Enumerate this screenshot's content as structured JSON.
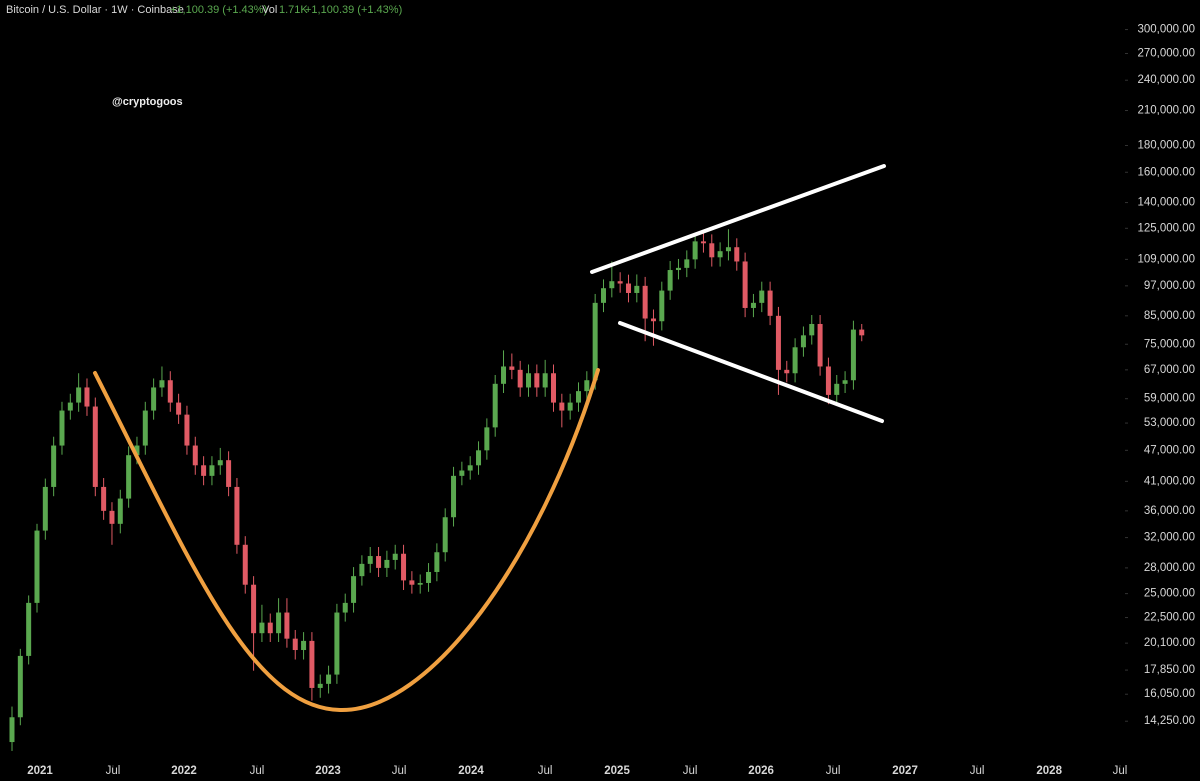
{
  "chart_data": {
    "type": "candlestick",
    "title": "Bitcoin / U.S. Dollar · 1W · Coinbase",
    "change": "+1,100.39 (+1.43%)",
    "vol_label": "Vol",
    "volume": "1.71K",
    "vol_change": "+1,100.39 (+1.43%)",
    "watermark": "@cryptogoos",
    "log_scale": true,
    "up_color": "#5aa84f",
    "down_color": "#e05a64",
    "ylim": [
      11750,
      327000
    ],
    "yticks": [
      {
        "value": 300000,
        "label": "300,000.00"
      },
      {
        "value": 270000,
        "label": "270,000.00"
      },
      {
        "value": 240000,
        "label": "240,000.00"
      },
      {
        "value": 210000,
        "label": "210,000.00"
      },
      {
        "value": 180000,
        "label": "180,000.00"
      },
      {
        "value": 160000,
        "label": "160,000.00"
      },
      {
        "value": 140000,
        "label": "140,000.00"
      },
      {
        "value": 125000,
        "label": "125,000.00"
      },
      {
        "value": 109000,
        "label": "109,000.00"
      },
      {
        "value": 97000,
        "label": "97,000.00"
      },
      {
        "value": 85000,
        "label": "85,000.00"
      },
      {
        "value": 75000,
        "label": "75,000.00"
      },
      {
        "value": 67000,
        "label": "67,000.00"
      },
      {
        "value": 59000,
        "label": "59,000.00"
      },
      {
        "value": 53000,
        "label": "53,000.00"
      },
      {
        "value": 47000,
        "label": "47,000.00"
      },
      {
        "value": 41000,
        "label": "41,000.00"
      },
      {
        "value": 36000,
        "label": "36,000.00"
      },
      {
        "value": 32000,
        "label": "32,000.00"
      },
      {
        "value": 28000,
        "label": "28,000.00"
      },
      {
        "value": 25000,
        "label": "25,000.00"
      },
      {
        "value": 22500,
        "label": "22,500.00"
      },
      {
        "value": 20100,
        "label": "20,100.00"
      },
      {
        "value": 17850,
        "label": "17,850.00"
      },
      {
        "value": 16050,
        "label": "16,050.00"
      },
      {
        "value": 14250,
        "label": "14,250.00"
      }
    ],
    "xlim": [
      -1.44,
      133.6
    ],
    "xticks": [
      {
        "value": 3.36,
        "label": "2021"
      },
      {
        "value": 12.12,
        "label": "Jul"
      },
      {
        "value": 20.65,
        "label": "2022"
      },
      {
        "value": 29.41,
        "label": "Jul"
      },
      {
        "value": 37.93,
        "label": "2023"
      },
      {
        "value": 46.46,
        "label": "Jul"
      },
      {
        "value": 55.1,
        "label": "2024"
      },
      {
        "value": 63.99,
        "label": "Jul"
      },
      {
        "value": 72.63,
        "label": "2025"
      },
      {
        "value": 81.39,
        "label": "Jul"
      },
      {
        "value": 89.92,
        "label": "2026"
      },
      {
        "value": 98.56,
        "label": "Jul"
      },
      {
        "value": 107.2,
        "label": "2027"
      },
      {
        "value": 115.85,
        "label": "Jul"
      },
      {
        "value": 124.5,
        "label": "2028"
      },
      {
        "value": 133.0,
        "label": "Jul"
      }
    ],
    "ohlc": [
      [
        13000,
        15200,
        12500,
        14500
      ],
      [
        14500,
        19600,
        14000,
        19000
      ],
      [
        19000,
        24800,
        18300,
        24000
      ],
      [
        24000,
        34000,
        23000,
        33000
      ],
      [
        33000,
        41500,
        31700,
        40000
      ],
      [
        40000,
        49900,
        38400,
        48000
      ],
      [
        48000,
        58200,
        46100,
        56000
      ],
      [
        56000,
        60300,
        53800,
        58000
      ],
      [
        58000,
        66000,
        55700,
        62000
      ],
      [
        62000,
        64500,
        54700,
        57000
      ],
      [
        57000,
        59300,
        38400,
        40000
      ],
      [
        40000,
        41600,
        34600,
        36000
      ],
      [
        36000,
        37400,
        31000,
        34000
      ],
      [
        34000,
        39500,
        32600,
        38000
      ],
      [
        38000,
        47800,
        36500,
        46000
      ],
      [
        46000,
        49900,
        44200,
        48000
      ],
      [
        48000,
        58200,
        46100,
        56000
      ],
      [
        56000,
        64500,
        53800,
        62000
      ],
      [
        62000,
        68000,
        59500,
        64000
      ],
      [
        64000,
        66600,
        55700,
        58000
      ],
      [
        58000,
        60300,
        52800,
        55000
      ],
      [
        55000,
        57200,
        46100,
        48000
      ],
      [
        48000,
        49900,
        42200,
        44000
      ],
      [
        44000,
        45800,
        40300,
        42000
      ],
      [
        42000,
        45800,
        40300,
        44000
      ],
      [
        44000,
        47500,
        42200,
        45000
      ],
      [
        45000,
        46800,
        38400,
        40000
      ],
      [
        40000,
        41600,
        29800,
        31000
      ],
      [
        31000,
        32200,
        25000,
        26000
      ],
      [
        26000,
        27000,
        17800,
        21000
      ],
      [
        21000,
        23800,
        20200,
        22000
      ],
      [
        22000,
        22900,
        20200,
        21000
      ],
      [
        21000,
        24500,
        20200,
        23000
      ],
      [
        23000,
        24500,
        19700,
        20500
      ],
      [
        20500,
        21300,
        18700,
        19500
      ],
      [
        19500,
        21100,
        18700,
        20300
      ],
      [
        20300,
        21100,
        15600,
        16500
      ],
      [
        16500,
        17500,
        15800,
        16800
      ],
      [
        16800,
        18200,
        16100,
        17500
      ],
      [
        17500,
        23900,
        16800,
        23000
      ],
      [
        23000,
        25000,
        22100,
        24000
      ],
      [
        24000,
        28100,
        23000,
        27000
      ],
      [
        27000,
        29600,
        25900,
        28500
      ],
      [
        28500,
        30700,
        27400,
        29500
      ],
      [
        29500,
        30700,
        26900,
        28000
      ],
      [
        28000,
        30200,
        26900,
        29000
      ],
      [
        29000,
        31000,
        27800,
        29800
      ],
      [
        29800,
        31000,
        25400,
        26500
      ],
      [
        26500,
        27600,
        25000,
        26000
      ],
      [
        26000,
        27200,
        25000,
        26200
      ],
      [
        26200,
        28600,
        25200,
        27500
      ],
      [
        27500,
        31200,
        26400,
        30000
      ],
      [
        30000,
        36400,
        28800,
        35000
      ],
      [
        35000,
        43700,
        33600,
        42000
      ],
      [
        42000,
        44700,
        40300,
        43000
      ],
      [
        43000,
        45800,
        41300,
        44000
      ],
      [
        44000,
        48900,
        42200,
        47000
      ],
      [
        47000,
        54100,
        45100,
        52000
      ],
      [
        52000,
        65500,
        49900,
        63000
      ],
      [
        63000,
        73000,
        60500,
        68000
      ],
      [
        68000,
        72000,
        64300,
        67000
      ],
      [
        67000,
        69700,
        59500,
        62000
      ],
      [
        62000,
        68600,
        59500,
        66000
      ],
      [
        66000,
        68600,
        59500,
        62000
      ],
      [
        62000,
        70000,
        59500,
        66000
      ],
      [
        66000,
        68600,
        55700,
        58000
      ],
      [
        58000,
        60300,
        52000,
        56000
      ],
      [
        56000,
        60300,
        53800,
        58000
      ],
      [
        58000,
        63400,
        55700,
        61000
      ],
      [
        61000,
        66600,
        58600,
        64000
      ],
      [
        64000,
        93600,
        61400,
        90000
      ],
      [
        90000,
        99800,
        86400,
        96000
      ],
      [
        96000,
        108000,
        92200,
        99000
      ],
      [
        99000,
        103000,
        94100,
        98000
      ],
      [
        98000,
        101900,
        90200,
        94000
      ],
      [
        94000,
        102000,
        90200,
        97000
      ],
      [
        97000,
        100900,
        76000,
        84000
      ],
      [
        84000,
        87400,
        74500,
        83000
      ],
      [
        83000,
        98800,
        79700,
        95000
      ],
      [
        95000,
        108200,
        91200,
        104000
      ],
      [
        104000,
        109200,
        99800,
        105000
      ],
      [
        105000,
        113400,
        100800,
        109000
      ],
      [
        109000,
        122700,
        104600,
        118000
      ],
      [
        118000,
        122700,
        112300,
        117000
      ],
      [
        117000,
        121700,
        105600,
        110000
      ],
      [
        110000,
        117500,
        105600,
        113000
      ],
      [
        113000,
        124500,
        108500,
        115000
      ],
      [
        115000,
        119600,
        103700,
        108000
      ],
      [
        108000,
        112300,
        84500,
        88000
      ],
      [
        88000,
        93600,
        84500,
        90000
      ],
      [
        90000,
        98800,
        86400,
        95000
      ],
      [
        95000,
        98800,
        81600,
        85000
      ],
      [
        85000,
        88400,
        60000,
        67000
      ],
      [
        67000,
        69700,
        63400,
        66000
      ],
      [
        66000,
        77000,
        63400,
        74000
      ],
      [
        74000,
        81100,
        71000,
        78000
      ],
      [
        78000,
        85300,
        74900,
        82000
      ],
      [
        82000,
        85300,
        65300,
        68000
      ],
      [
        68000,
        70700,
        57600,
        60000
      ],
      [
        60000,
        65500,
        57600,
        63000
      ],
      [
        63000,
        66600,
        60500,
        64000
      ],
      [
        64000,
        83200,
        61400,
        80000
      ],
      [
        80000,
        82000,
        76000,
        78000
      ]
    ]
  }
}
